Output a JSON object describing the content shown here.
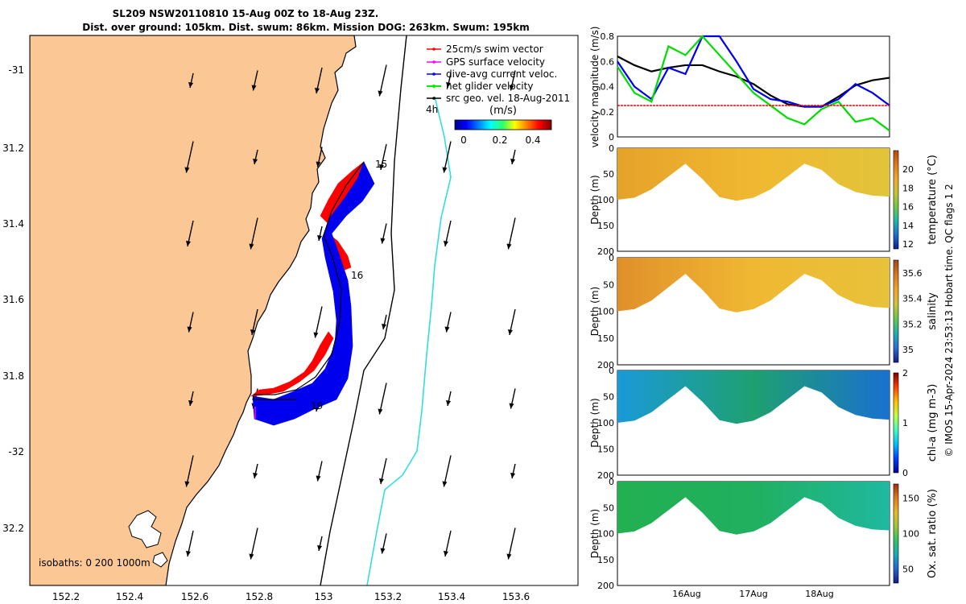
{
  "title": {
    "line1": "SL209 NSW20110810 15-Aug 00Z to 18-Aug 23Z.",
    "line2": "Dist. over ground: 105km. Dist. swum: 86km. Mission DOG: 263km. Swum: 195km"
  },
  "map": {
    "legend": [
      {
        "label": "25cm/s swim vector",
        "color": "#ff0000"
      },
      {
        "label": "GPS surface velocity",
        "color": "#ff00ff"
      },
      {
        "label": "dive-avg current veloc.",
        "color": "#0000ff"
      },
      {
        "label": "net glider velocity",
        "color": "#00ee00"
      },
      {
        "label": "src geo. vel. 18-Aug-2011",
        "color": "#000000"
      }
    ],
    "legend_scale_label": "4h",
    "colorbar": {
      "unit": "(m/s)",
      "ticks": [
        "0",
        "0.2",
        "0.4"
      ]
    },
    "lon_ticks": [
      "152.2",
      "152.4",
      "152.6",
      "152.8",
      "153",
      "153.2",
      "153.4",
      "153.6"
    ],
    "lat_ticks": [
      "-31",
      "31.2",
      "31.4",
      "31.6",
      "31.8",
      "-32",
      "32.2"
    ],
    "day_labels": [
      "15",
      "16",
      "19"
    ],
    "isobaths_label": "isobaths: 0   200  1000m",
    "colors": {
      "land": "#fbc895",
      "track_red": "#ff0000",
      "track_blue": "#0000ee",
      "isobath_200": "#000000",
      "isobath_1000": "#33dddd"
    }
  },
  "chart_data": [
    {
      "type": "line",
      "ylabel": "velocity magnitude (m/s)",
      "ylim": [
        0,
        0.8
      ],
      "yticks": [
        "0",
        "0.2",
        "0.4",
        "0.6",
        "0.8"
      ],
      "x": [
        15.0,
        15.25,
        15.5,
        15.75,
        16.0,
        16.25,
        16.5,
        16.75,
        17.0,
        17.25,
        17.5,
        17.75,
        18.0,
        18.25,
        18.5,
        18.75,
        19.0
      ],
      "series": [
        {
          "color": "#000000",
          "values": [
            0.64,
            0.57,
            0.52,
            0.55,
            0.57,
            0.57,
            0.52,
            0.48,
            0.42,
            0.33,
            0.26,
            0.24,
            0.24,
            0.32,
            0.41,
            0.45,
            0.47
          ]
        },
        {
          "color": "#0000ee",
          "values": [
            0.6,
            0.4,
            0.3,
            0.55,
            0.5,
            0.8,
            0.8,
            0.6,
            0.38,
            0.3,
            0.28,
            0.24,
            0.24,
            0.3,
            0.42,
            0.35,
            0.25
          ]
        },
        {
          "color": "#00dd00",
          "values": [
            0.56,
            0.35,
            0.28,
            0.72,
            0.65,
            0.8,
            0.65,
            0.5,
            0.35,
            0.25,
            0.15,
            0.1,
            0.22,
            0.28,
            0.12,
            0.15,
            0.05
          ]
        },
        {
          "color": "#ff0000",
          "values": [
            0.25,
            0.25,
            0.25,
            0.25,
            0.25,
            0.25,
            0.25,
            0.25,
            0.25,
            0.25,
            0.25,
            0.25,
            0.25,
            0.25,
            0.25,
            0.25,
            0.25
          ]
        }
      ]
    },
    {
      "type": "heatmap",
      "variable": "temperature (°C)",
      "ylabel": "Depth (m)",
      "yticks": [
        "0",
        "50",
        "100",
        "150",
        "200"
      ],
      "cbar_ticks": [
        "12",
        "14",
        "16",
        "18",
        "20"
      ],
      "clim": [
        11.5,
        22
      ]
    },
    {
      "type": "heatmap",
      "variable": "salinity",
      "ylabel": "Depth (m)",
      "yticks": [
        "0",
        "50",
        "100",
        "150",
        "200"
      ],
      "cbar_ticks": [
        "35",
        "35.2",
        "35.4",
        "35.6"
      ],
      "clim": [
        34.9,
        35.7
      ]
    },
    {
      "type": "heatmap",
      "variable": "chl-a (mg m-3)",
      "ylabel": "Depth (m)",
      "yticks": [
        "0",
        "50",
        "100",
        "150",
        "200"
      ],
      "cbar_ticks": [
        "0",
        "1",
        "2"
      ],
      "clim": [
        0,
        2
      ]
    },
    {
      "type": "heatmap",
      "variable": "Ox. sat. ratio (%)",
      "ylabel": "Depth (m)",
      "yticks": [
        "0",
        "50",
        "100",
        "150",
        "200"
      ],
      "cbar_ticks": [
        "50",
        "100",
        "150"
      ],
      "clim": [
        30,
        170
      ]
    }
  ],
  "time_axis": {
    "ticks": [
      "16Aug",
      "17Aug",
      "18Aug"
    ]
  },
  "footer": "© IMOS 15-Apr-2024 23:53:13 Hobart time. QC flags 1 2"
}
